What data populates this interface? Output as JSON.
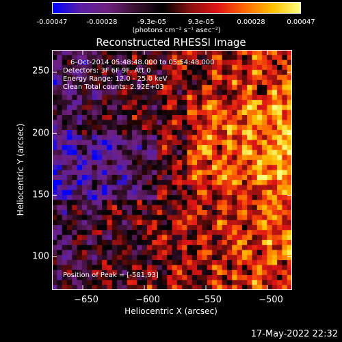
{
  "colorbar": {
    "tick_labels": [
      "-0.00047",
      "-0.00028",
      "-9.3e-05",
      "9.3e-05",
      "0.00028",
      "0.00047"
    ],
    "unit_label": "(photons cm⁻² s⁻¹ asec⁻²)",
    "range": [
      -0.00047,
      0.00047
    ]
  },
  "chart_data": {
    "type": "heatmap",
    "title": "Reconstructed RHESSI Image",
    "xlabel": "Heliocentric X (arcsec)",
    "ylabel": "Heliocentric Y (arcsec)",
    "xlim": [
      -675,
      -480
    ],
    "ylim": [
      73,
      268
    ],
    "x_ticks": [
      -650,
      -600,
      -550,
      -500
    ],
    "y_ticks": [
      100,
      150,
      200,
      250
    ],
    "x_tick_labels": [
      "−650",
      "−600",
      "−550",
      "−500"
    ],
    "y_tick_labels": [
      "100",
      "150",
      "200",
      "250"
    ],
    "grid": false,
    "colormap": [
      "#0000ff",
      "#5a1fa4",
      "#6e2080",
      "#3a1030",
      "#000000",
      "#8a1010",
      "#e01515",
      "#ff6a00",
      "#ffc000",
      "#ffff80"
    ],
    "peak": [
      -581,
      93
    ],
    "info_lines": [
      "6-Oct-2014 05:48:48.000 to 05:54:48.000",
      "Detectors: 3F 6F 9F, Att 0",
      "Energy Range: 12.0 - 25.0 keV",
      "Clean    Total counts: 2.92E+03"
    ],
    "peak_text": "Position of Peak = [-581,93]"
  },
  "footer": {
    "timestamp": "17-May-2022 22:32"
  }
}
